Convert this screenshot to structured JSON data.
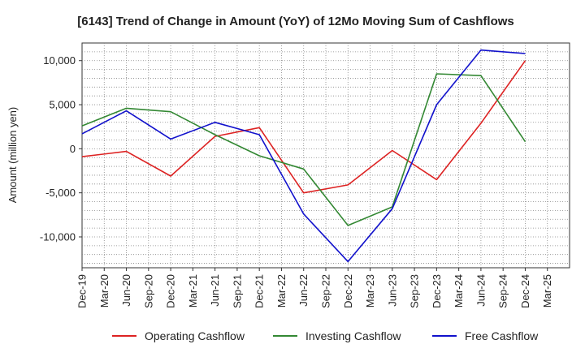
{
  "chart_data": {
    "type": "line",
    "title": "[6143]  Trend of Change in Amount (YoY) of 12Mo Moving Sum of Cashflows",
    "xlabel": "",
    "ylabel": "Amount (million yen)",
    "ylim": [
      -13500,
      12000
    ],
    "yticks": [
      10000,
      5000,
      0,
      -5000,
      -10000
    ],
    "ytick_labels": [
      "10,000",
      "5,000",
      "0",
      "-5,000",
      "-10,000"
    ],
    "categories": [
      "Dec-19",
      "Mar-20",
      "Jun-20",
      "Sep-20",
      "Dec-20",
      "Mar-21",
      "Jun-21",
      "Sep-21",
      "Dec-21",
      "Mar-22",
      "Jun-22",
      "Sep-22",
      "Dec-22",
      "Mar-23",
      "Jun-23",
      "Sep-23",
      "Dec-23",
      "Mar-24",
      "Jun-24",
      "Sep-24",
      "Dec-24",
      "Mar-25"
    ],
    "grid": true,
    "legend_position": "bottom",
    "series": [
      {
        "name": "Operating Cashflow",
        "color": "#dd2222",
        "values": [
          -900,
          null,
          -300,
          null,
          -3100,
          null,
          1400,
          null,
          2400,
          null,
          -5000,
          null,
          -4100,
          null,
          -200,
          null,
          -3500,
          null,
          2900,
          null,
          10000,
          null
        ]
      },
      {
        "name": "Investing Cashflow",
        "color": "#338833",
        "values": [
          2600,
          null,
          4600,
          null,
          4200,
          null,
          1600,
          null,
          -800,
          null,
          -2300,
          null,
          -8700,
          null,
          -6600,
          null,
          8500,
          null,
          8300,
          null,
          800,
          null
        ]
      },
      {
        "name": "Free Cashflow",
        "color": "#1111cc",
        "values": [
          1700,
          null,
          4300,
          null,
          1100,
          null,
          3000,
          null,
          1600,
          null,
          -7400,
          null,
          -12800,
          null,
          -6800,
          null,
          5000,
          null,
          11200,
          null,
          10800,
          null
        ]
      }
    ]
  }
}
